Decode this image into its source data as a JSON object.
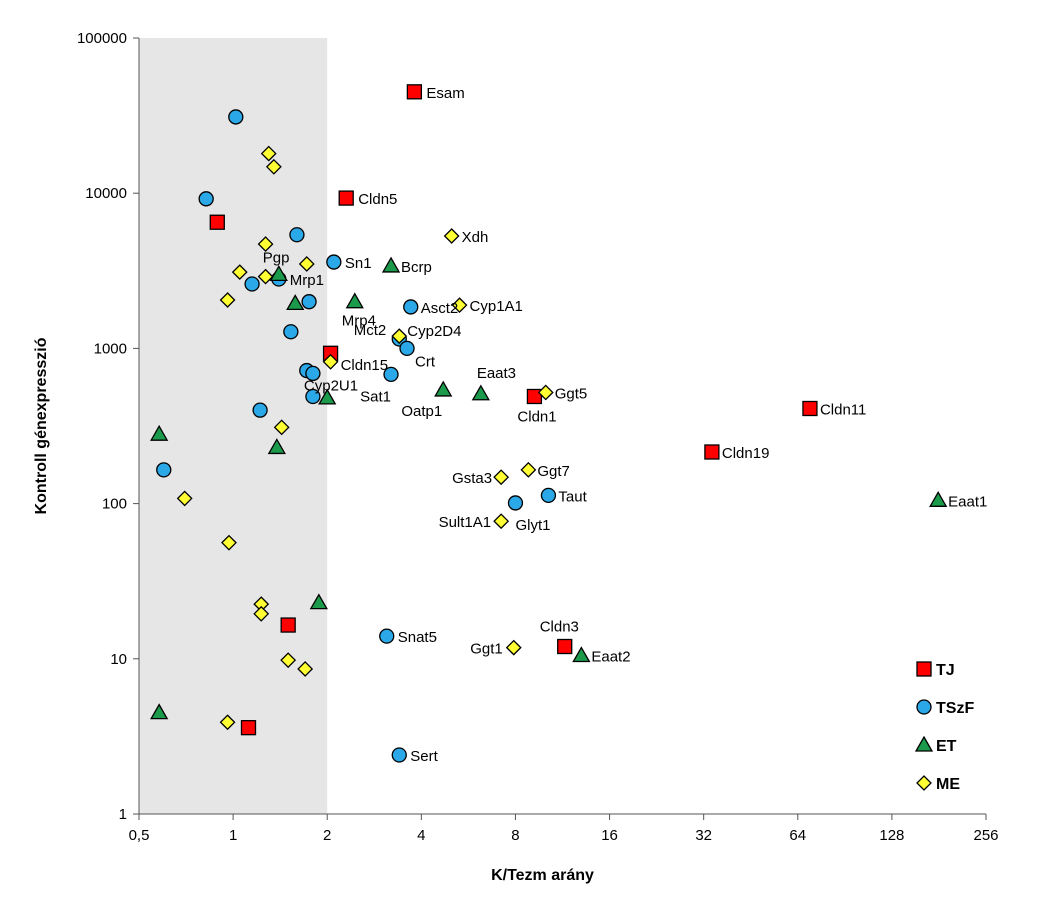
{
  "chart_data": {
    "type": "scatter",
    "xlabel": "K/Tezm arány",
    "ylabel": "Kontroll génexpresszió",
    "x_scale": "log2",
    "y_scale": "log10",
    "xlim": [
      0.5,
      256
    ],
    "ylim": [
      1,
      100000
    ],
    "x_ticks": [
      {
        "value": 0.5,
        "label": "0,5"
      },
      {
        "value": 1,
        "label": "1"
      },
      {
        "value": 2,
        "label": "2"
      },
      {
        "value": 4,
        "label": "4"
      },
      {
        "value": 8,
        "label": "8"
      },
      {
        "value": 16,
        "label": "16"
      },
      {
        "value": 32,
        "label": "32"
      },
      {
        "value": 64,
        "label": "64"
      },
      {
        "value": 128,
        "label": "128"
      },
      {
        "value": 256,
        "label": "256"
      }
    ],
    "y_ticks": [
      {
        "value": 1,
        "label": "1"
      },
      {
        "value": 10,
        "label": "10"
      },
      {
        "value": 100,
        "label": "100"
      },
      {
        "value": 1000,
        "label": "1000"
      },
      {
        "value": 10000,
        "label": "10000"
      },
      {
        "value": 100000,
        "label": "100000"
      }
    ],
    "shaded_region": {
      "x": [
        0.5,
        2
      ],
      "color": "#e6e6e6"
    },
    "grid": false,
    "legend_position": "bottom-right",
    "series": [
      {
        "name": "TJ",
        "marker": "square",
        "color": "#ff0000",
        "points": [
          {
            "x": 3.8,
            "y": 45000,
            "label": "Esam"
          },
          {
            "x": 2.3,
            "y": 9300,
            "label": "Cldn5"
          },
          {
            "x": 0.89,
            "y": 6500,
            "label": ""
          },
          {
            "x": 2.05,
            "y": 930,
            "label": ""
          },
          {
            "x": 9.2,
            "y": 490,
            "label": "Cldn1"
          },
          {
            "x": 70,
            "y": 410,
            "label": "Cldn11"
          },
          {
            "x": 34,
            "y": 215,
            "label": "Cldn19"
          },
          {
            "x": 1.5,
            "y": 16.5,
            "label": ""
          },
          {
            "x": 11.5,
            "y": 12,
            "label": "Cldn3"
          },
          {
            "x": 1.12,
            "y": 3.6,
            "label": ""
          }
        ]
      },
      {
        "name": "TSzF",
        "marker": "circle",
        "color": "#2aa8e8",
        "points": [
          {
            "x": 1.02,
            "y": 31000,
            "label": ""
          },
          {
            "x": 0.82,
            "y": 9200,
            "label": ""
          },
          {
            "x": 1.6,
            "y": 5400,
            "label": ""
          },
          {
            "x": 2.1,
            "y": 3600,
            "label": "Sn1"
          },
          {
            "x": 1.4,
            "y": 2800,
            "label": "Mrp1"
          },
          {
            "x": 1.15,
            "y": 2600,
            "label": ""
          },
          {
            "x": 1.75,
            "y": 2000,
            "label": ""
          },
          {
            "x": 3.7,
            "y": 1850,
            "label": "Asct2"
          },
          {
            "x": 1.53,
            "y": 1280,
            "label": ""
          },
          {
            "x": 3.4,
            "y": 1150,
            "label": "Mct2"
          },
          {
            "x": 3.6,
            "y": 1000,
            "label": "Crt"
          },
          {
            "x": 1.72,
            "y": 720,
            "label": ""
          },
          {
            "x": 1.8,
            "y": 690,
            "label": "Cyp2U1"
          },
          {
            "x": 3.2,
            "y": 680,
            "label": "Sat1"
          },
          {
            "x": 1.22,
            "y": 400,
            "label": ""
          },
          {
            "x": 1.8,
            "y": 490,
            "label": ""
          },
          {
            "x": 0.6,
            "y": 165,
            "label": ""
          },
          {
            "x": 10.2,
            "y": 113,
            "label": "Taut"
          },
          {
            "x": 8.0,
            "y": 101,
            "label": "Glyt1"
          },
          {
            "x": 3.1,
            "y": 14,
            "label": "Snat5"
          },
          {
            "x": 3.4,
            "y": 2.4,
            "label": "Sert"
          }
        ]
      },
      {
        "name": "ET",
        "marker": "triangle",
        "color": "#1a9a4a",
        "points": [
          {
            "x": 1.4,
            "y": 3000,
            "label": "Pgp"
          },
          {
            "x": 3.2,
            "y": 3400,
            "label": "Bcrp"
          },
          {
            "x": 1.58,
            "y": 1950,
            "label": ""
          },
          {
            "x": 2.45,
            "y": 2000,
            "label": "Mrp4"
          },
          {
            "x": 4.7,
            "y": 540,
            "label": "Oatp1"
          },
          {
            "x": 6.2,
            "y": 510,
            "label": "Eaat3"
          },
          {
            "x": 2.0,
            "y": 480,
            "label": ""
          },
          {
            "x": 0.58,
            "y": 280,
            "label": ""
          },
          {
            "x": 1.38,
            "y": 230,
            "label": ""
          },
          {
            "x": 180,
            "y": 105,
            "label": "Eaat1"
          },
          {
            "x": 1.88,
            "y": 23,
            "label": ""
          },
          {
            "x": 13,
            "y": 10.5,
            "label": "Eaat2"
          },
          {
            "x": 0.58,
            "y": 4.5,
            "label": ""
          }
        ]
      },
      {
        "name": "ME",
        "marker": "diamond",
        "color": "#ffff33",
        "points": [
          {
            "x": 1.3,
            "y": 18000,
            "label": ""
          },
          {
            "x": 1.35,
            "y": 14800,
            "label": ""
          },
          {
            "x": 5.0,
            "y": 5300,
            "label": "Xdh"
          },
          {
            "x": 1.27,
            "y": 4700,
            "label": ""
          },
          {
            "x": 1.72,
            "y": 3500,
            "label": ""
          },
          {
            "x": 1.05,
            "y": 3100,
            "label": ""
          },
          {
            "x": 1.27,
            "y": 2900,
            "label": ""
          },
          {
            "x": 0.96,
            "y": 2050,
            "label": ""
          },
          {
            "x": 5.3,
            "y": 1900,
            "label": "Cyp1A1"
          },
          {
            "x": 3.4,
            "y": 1200,
            "label": "Cyp2D4"
          },
          {
            "x": 2.05,
            "y": 820,
            "label": "Cldn15"
          },
          {
            "x": 10.0,
            "y": 520,
            "label": "Ggt5"
          },
          {
            "x": 1.43,
            "y": 310,
            "label": ""
          },
          {
            "x": 8.8,
            "y": 165,
            "label": "Ggt7"
          },
          {
            "x": 7.2,
            "y": 148,
            "label": "Gsta3"
          },
          {
            "x": 0.7,
            "y": 108,
            "label": ""
          },
          {
            "x": 7.2,
            "y": 77,
            "label": "Sult1A1"
          },
          {
            "x": 0.97,
            "y": 56,
            "label": ""
          },
          {
            "x": 1.23,
            "y": 22.5,
            "label": ""
          },
          {
            "x": 1.23,
            "y": 19.5,
            "label": ""
          },
          {
            "x": 7.9,
            "y": 11.8,
            "label": "Ggt1"
          },
          {
            "x": 1.5,
            "y": 9.8,
            "label": ""
          },
          {
            "x": 1.7,
            "y": 8.6,
            "label": ""
          },
          {
            "x": 0.96,
            "y": 3.9,
            "label": ""
          }
        ]
      }
    ]
  }
}
